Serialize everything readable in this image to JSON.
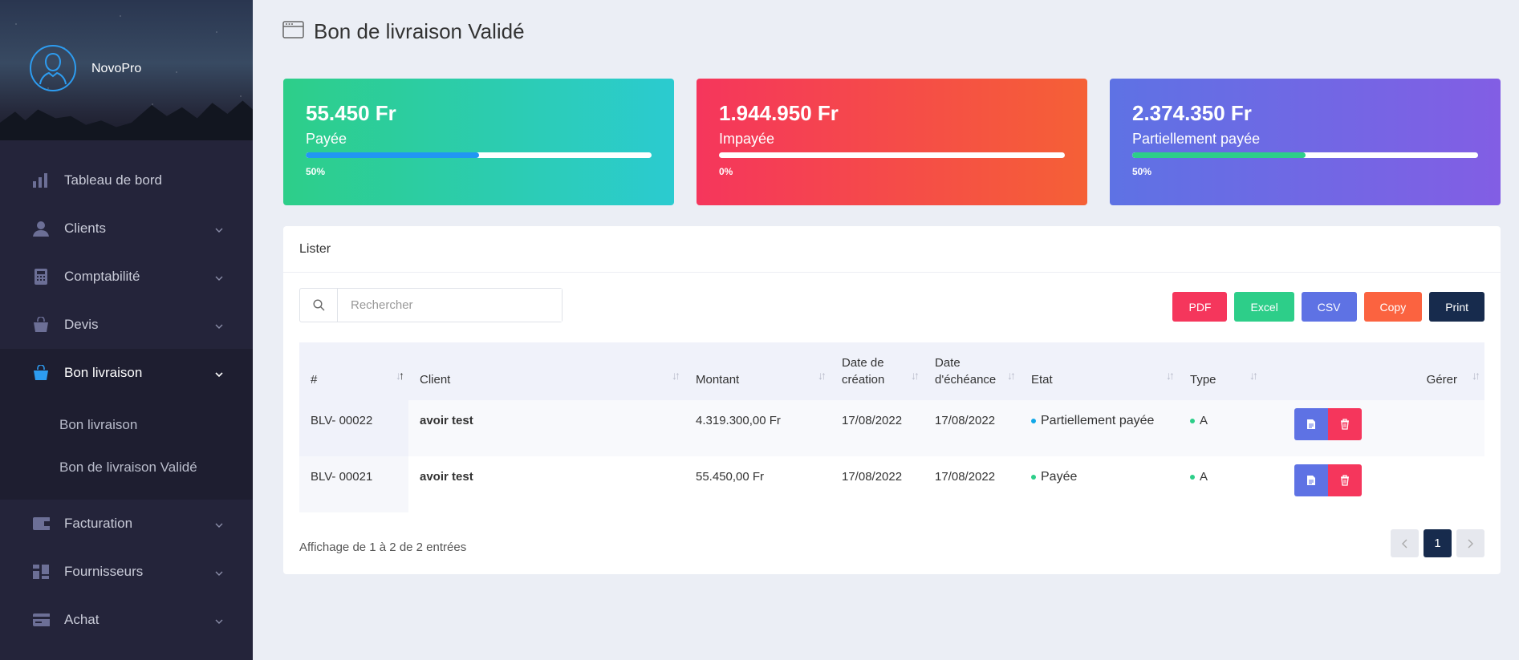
{
  "sidebar": {
    "brand": "NovoPro",
    "items": [
      {
        "label": "Tableau de bord",
        "icon": "chart-bars-icon"
      },
      {
        "label": "Clients",
        "icon": "user-icon"
      },
      {
        "label": "Comptabilité",
        "icon": "calculator-icon"
      },
      {
        "label": "Devis",
        "icon": "bag-icon"
      },
      {
        "label": "Bon livraison",
        "icon": "shopping-bag-icon"
      },
      {
        "label": "Facturation",
        "icon": "wallet-icon"
      },
      {
        "label": "Fournisseurs",
        "icon": "grid-icon"
      },
      {
        "label": "Achat",
        "icon": "card-icon"
      }
    ],
    "submenu": [
      "Bon livraison",
      "Bon de livraison Validé"
    ]
  },
  "page": {
    "title": "Bon de livraison Validé"
  },
  "cards": [
    {
      "amount": "55.450 Fr",
      "label": "Payée",
      "pct": "50%",
      "fill": 0.5,
      "fill_color": "#2196f3"
    },
    {
      "amount": "1.944.950 Fr",
      "label": "Impayée",
      "pct": "0%",
      "fill": 0,
      "fill_color": "#f5365c"
    },
    {
      "amount": "2.374.350 Fr",
      "label": "Partiellement payée",
      "pct": "50%",
      "fill": 0.5,
      "fill_color": "#2dce89"
    }
  ],
  "panel": {
    "title": "Lister",
    "search_placeholder": "Rechercher",
    "buttons": {
      "pdf": "PDF",
      "excel": "Excel",
      "csv": "CSV",
      "copy": "Copy",
      "print": "Print"
    },
    "columns": [
      "#",
      "Client",
      "Montant",
      "Date de création",
      "Date d'échéance",
      "Etat",
      "Type",
      "Gérer"
    ],
    "rows": [
      {
        "id": "BLV- 00022",
        "client": "avoir test",
        "montant": "4.319.300,00 Fr",
        "creation": "17/08/2022",
        "echeance": "17/08/2022",
        "etat": "Partiellement payée",
        "etat_color": "#11a8e8",
        "type": "A"
      },
      {
        "id": "BLV- 00021",
        "client": "avoir test",
        "montant": "55.450,00 Fr",
        "creation": "17/08/2022",
        "echeance": "17/08/2022",
        "etat": "Payée",
        "etat_color": "#2dce89",
        "type": "A"
      }
    ],
    "info": "Affichage de 1 à 2 de 2 entrées",
    "page": "1"
  }
}
